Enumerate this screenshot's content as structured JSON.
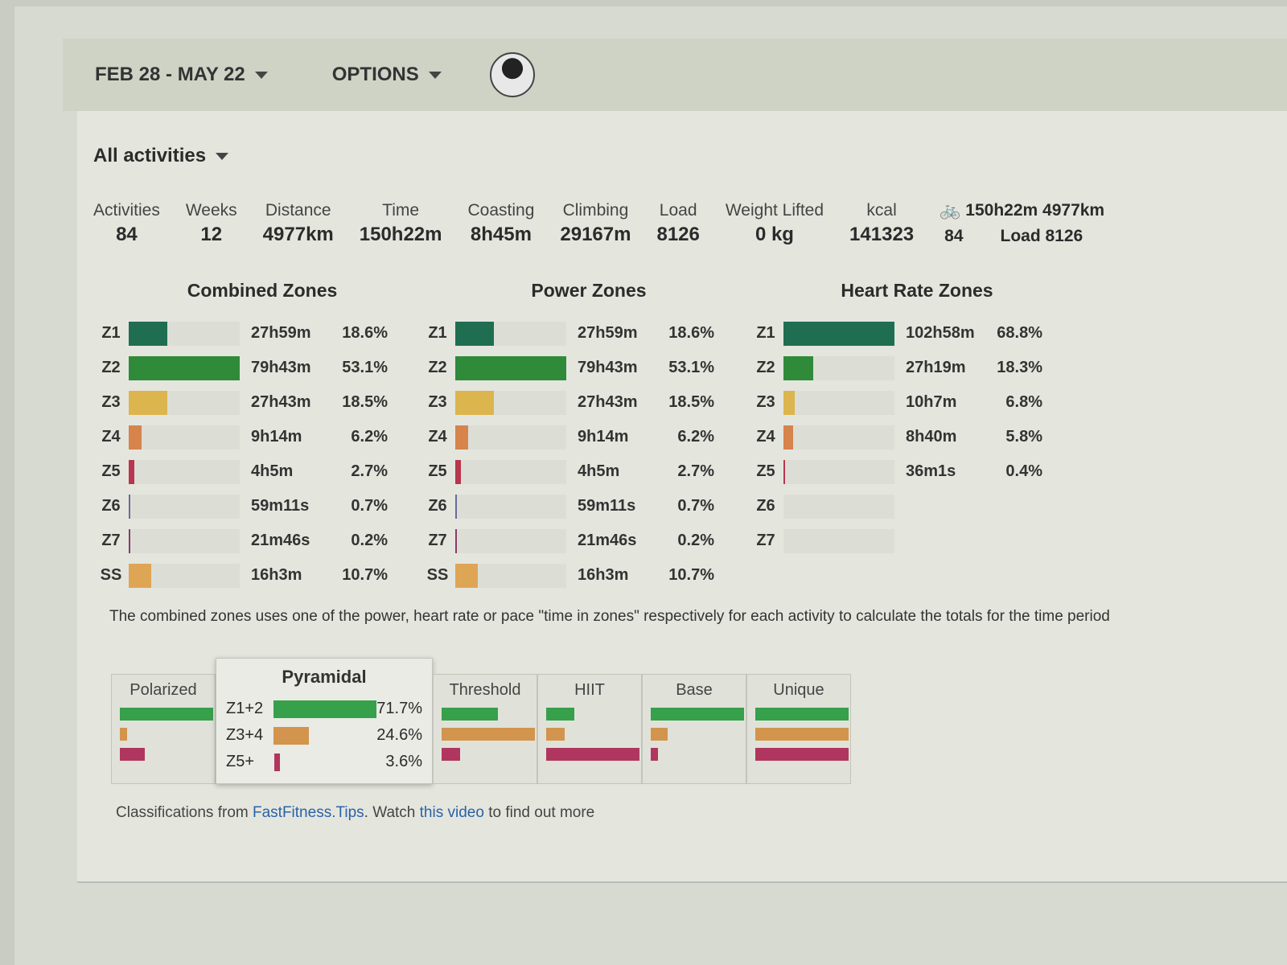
{
  "header": {
    "date_range": "FEB 28 - MAY 22",
    "options": "OPTIONS"
  },
  "filter": {
    "activity_type": "All activities"
  },
  "stats": [
    {
      "label": "Activities",
      "value": "84"
    },
    {
      "label": "Weeks",
      "value": "12"
    },
    {
      "label": "Distance",
      "value": "4977km"
    },
    {
      "label": "Time",
      "value": "150h22m"
    },
    {
      "label": "Coasting",
      "value": "8h45m"
    },
    {
      "label": "Climbing",
      "value": "29167m"
    },
    {
      "label": "Load",
      "value": "8126"
    },
    {
      "label": "Weight Lifted",
      "value": "0 kg"
    },
    {
      "label": "kcal",
      "value": "141323"
    }
  ],
  "ride_summary": {
    "time_distance": "150h22m 4977km",
    "count": "84",
    "load": "Load 8126"
  },
  "colors": {
    "z1": "#1f6e52",
    "z2": "#2f8a3a",
    "z3": "#dcb54e",
    "z4": "#d6834c",
    "z5": "#b8364f",
    "z6": "#6a6a9a",
    "z7": "#8a3a6a",
    "ss": "#dea555",
    "green": "#37a04a",
    "orange": "#d3944e",
    "red": "#b0365f"
  },
  "zone_panels": [
    {
      "title": "Combined Zones",
      "rows": [
        {
          "zone": "Z1",
          "time": "27h59m",
          "pct": "18.6%",
          "value": 18.6
        },
        {
          "zone": "Z2",
          "time": "79h43m",
          "pct": "53.1%",
          "value": 53.1
        },
        {
          "zone": "Z3",
          "time": "27h43m",
          "pct": "18.5%",
          "value": 18.5
        },
        {
          "zone": "Z4",
          "time": "9h14m",
          "pct": "6.2%",
          "value": 6.2
        },
        {
          "zone": "Z5",
          "time": "4h5m",
          "pct": "2.7%",
          "value": 2.7
        },
        {
          "zone": "Z6",
          "time": "59m11s",
          "pct": "0.7%",
          "value": 0.7
        },
        {
          "zone": "Z7",
          "time": "21m46s",
          "pct": "0.2%",
          "value": 0.2
        },
        {
          "zone": "SS",
          "time": "16h3m",
          "pct": "10.7%",
          "value": 10.7
        }
      ]
    },
    {
      "title": "Power Zones",
      "rows": [
        {
          "zone": "Z1",
          "time": "27h59m",
          "pct": "18.6%",
          "value": 18.6
        },
        {
          "zone": "Z2",
          "time": "79h43m",
          "pct": "53.1%",
          "value": 53.1
        },
        {
          "zone": "Z3",
          "time": "27h43m",
          "pct": "18.5%",
          "value": 18.5
        },
        {
          "zone": "Z4",
          "time": "9h14m",
          "pct": "6.2%",
          "value": 6.2
        },
        {
          "zone": "Z5",
          "time": "4h5m",
          "pct": "2.7%",
          "value": 2.7
        },
        {
          "zone": "Z6",
          "time": "59m11s",
          "pct": "0.7%",
          "value": 0.7
        },
        {
          "zone": "Z7",
          "time": "21m46s",
          "pct": "0.2%",
          "value": 0.2
        },
        {
          "zone": "SS",
          "time": "16h3m",
          "pct": "10.7%",
          "value": 10.7
        }
      ]
    },
    {
      "title": "Heart Rate Zones",
      "rows": [
        {
          "zone": "Z1",
          "time": "102h58m",
          "pct": "68.8%",
          "value": 68.8
        },
        {
          "zone": "Z2",
          "time": "27h19m",
          "pct": "18.3%",
          "value": 18.3
        },
        {
          "zone": "Z3",
          "time": "10h7m",
          "pct": "6.8%",
          "value": 6.8
        },
        {
          "zone": "Z4",
          "time": "8h40m",
          "pct": "5.8%",
          "value": 5.8
        },
        {
          "zone": "Z5",
          "time": "36m1s",
          "pct": "0.4%",
          "value": 0.4
        },
        {
          "zone": "Z6",
          "time": "",
          "pct": "",
          "value": 0
        },
        {
          "zone": "Z7",
          "time": "",
          "pct": "",
          "value": 0
        }
      ]
    }
  ],
  "note": "The combined zones uses one of the power, heart rate or pace \"time in zones\" respectively for each activity to calculate the totals for the time period",
  "classifications": [
    {
      "name": "Polarized",
      "bars": [
        1.0,
        0.08,
        0.27
      ]
    },
    {
      "name": "Pyramidal",
      "selected": true,
      "rows": [
        {
          "label": "Z1+2",
          "pct": "71.7%",
          "value": 71.7
        },
        {
          "label": "Z3+4",
          "pct": "24.6%",
          "value": 24.6
        },
        {
          "label": "Z5+",
          "pct": "3.6%",
          "value": 3.6
        }
      ]
    },
    {
      "name": "Threshold",
      "bars": [
        0.6,
        1.0,
        0.2
      ]
    },
    {
      "name": "HIIT",
      "bars": [
        0.3,
        0.2,
        1.0
      ]
    },
    {
      "name": "Base",
      "bars": [
        1.0,
        0.18,
        0.08
      ]
    },
    {
      "name": "Unique",
      "bars": [
        1.0,
        1.0,
        1.0
      ]
    }
  ],
  "footer": {
    "prefix": "Classifications from ",
    "link1": "FastFitness.Tips",
    "middle": ". Watch ",
    "link2": "this video",
    "suffix": " to find out more"
  }
}
